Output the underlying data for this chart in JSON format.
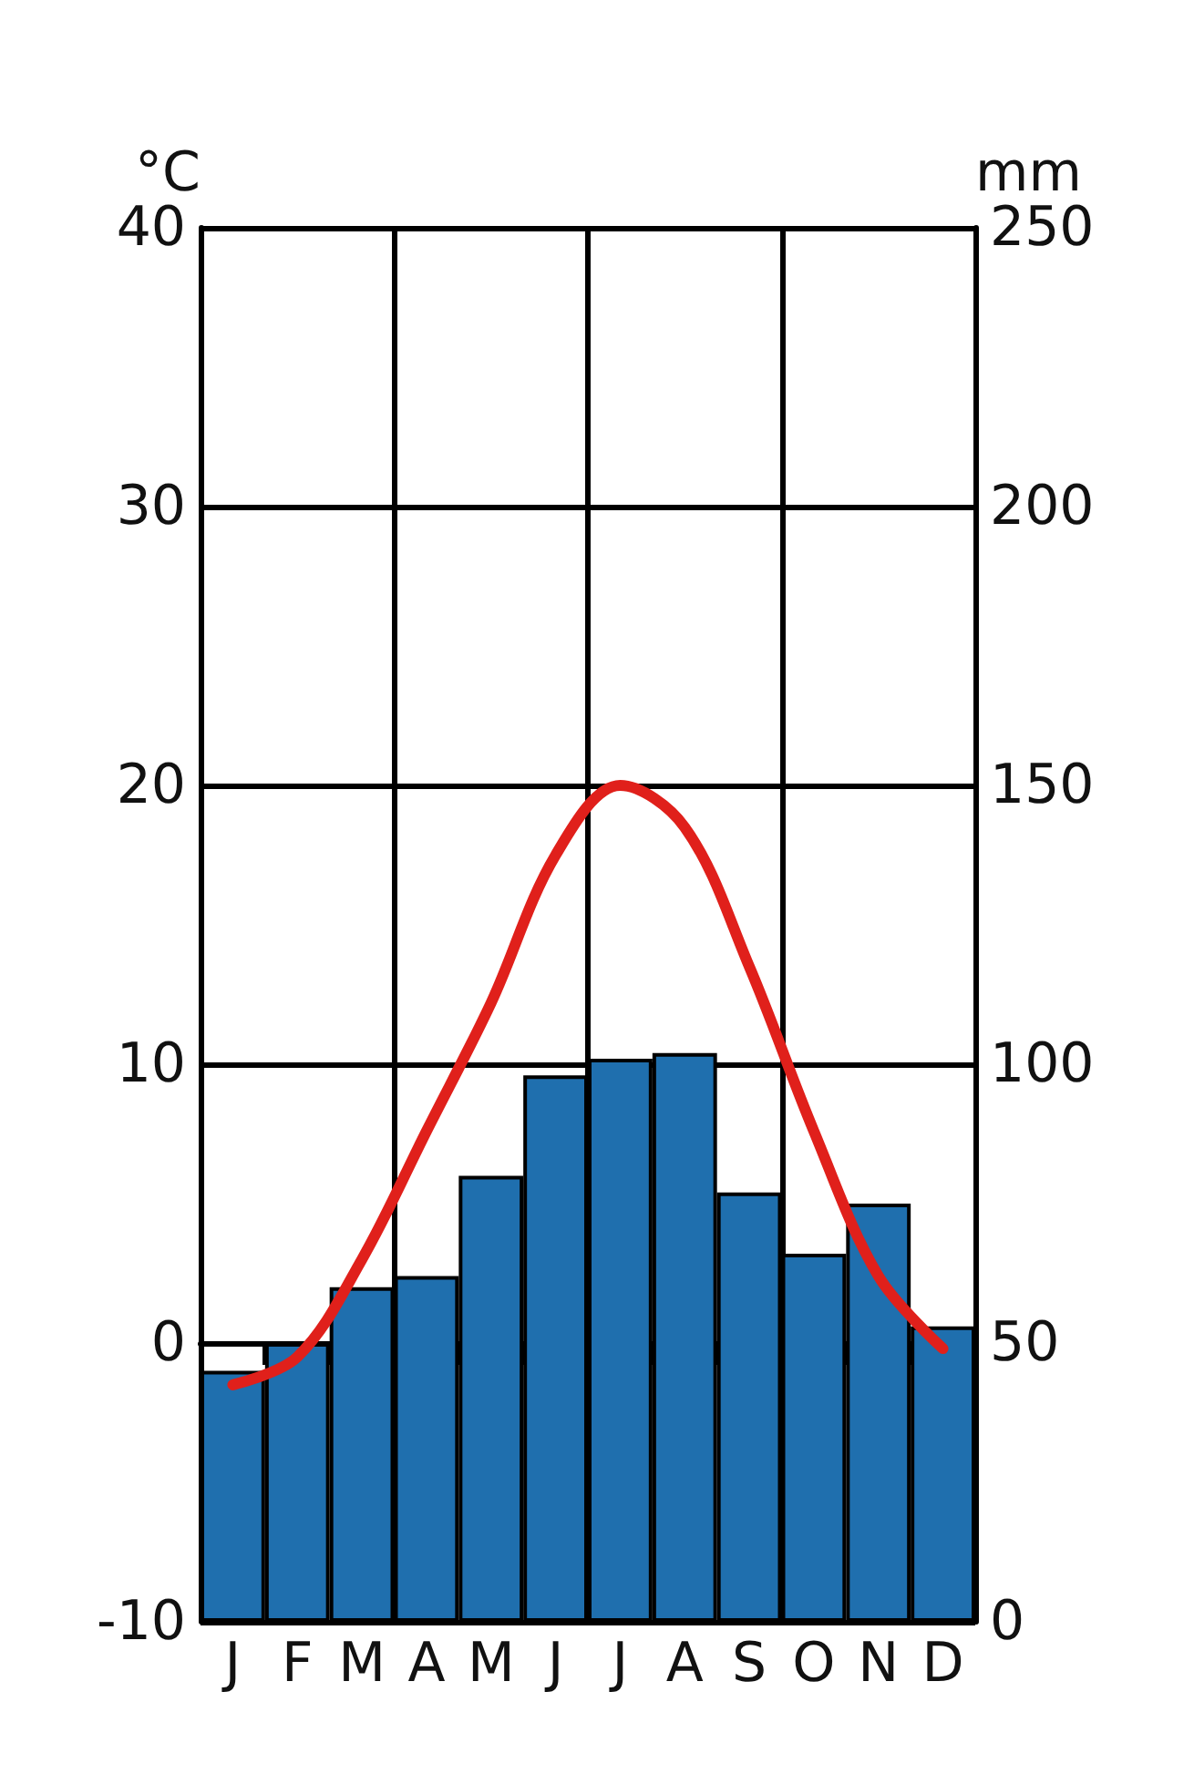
{
  "chart_data": {
    "type": "bar",
    "ylabel": "°C",
    "y2label": "mm",
    "categories": [
      "J",
      "F",
      "M",
      "A",
      "M",
      "J",
      "J",
      "A",
      "S",
      "O",
      "N",
      "D"
    ],
    "series": [
      {
        "axis": "y2",
        "color": "#1f6fae",
        "values": [
          45,
          50,
          60,
          62,
          80,
          98,
          101,
          102,
          77,
          66,
          75,
          53
        ]
      },
      {
        "type": "line",
        "axis": "y",
        "color": "#e0201b",
        "marker": "none",
        "line_style": "solid",
        "values": [
          -1.5,
          -0.5,
          3,
          7.6,
          12.2,
          17.5,
          20,
          18.5,
          13.5,
          7.6,
          2.4,
          -0.2
        ]
      }
    ],
    "ylim": [
      -10,
      40
    ],
    "yticks": [
      -10,
      0,
      10,
      20,
      30,
      40
    ],
    "y2lim": [
      0,
      250
    ],
    "y2ticks": [
      0,
      50,
      100,
      150,
      200,
      250
    ],
    "grid": true
  }
}
